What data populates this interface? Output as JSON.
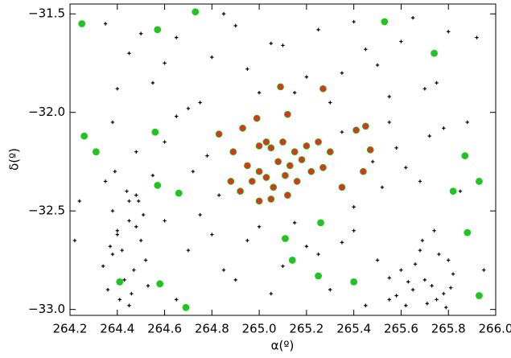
{
  "chart_data": {
    "type": "scatter",
    "xlabel": "α(º)",
    "ylabel": "δ(º)",
    "xlim": [
      264.2,
      266.0
    ],
    "ylim": [
      -33.03,
      -31.45
    ],
    "xticks": [
      264.2,
      264.4,
      264.6,
      264.8,
      {
        "value": 265.0,
        "label": "265.0"
      },
      265.2,
      265.4,
      265.6,
      265.8,
      {
        "value": 266.0,
        "label": "266.0"
      }
    ],
    "yticks": [
      {
        "value": -33.0,
        "label": "−33.0"
      },
      {
        "value": -32.5,
        "label": "−32.5"
      },
      {
        "value": -32.0,
        "label": "−32.0"
      },
      {
        "value": -31.5,
        "label": "−31.5"
      }
    ],
    "series": [
      {
        "color": "#000000",
        "marker": "plus",
        "x": [
          264.35,
          264.38,
          264.4,
          264.42,
          264.45,
          264.47,
          264.5,
          264.36,
          264.41,
          264.44,
          264.48,
          264.52,
          264.37,
          264.43,
          264.49,
          264.39,
          264.46,
          264.51,
          264.34,
          264.4,
          264.45,
          264.53,
          264.38,
          264.48,
          265.6,
          265.65,
          265.7,
          265.75,
          265.8,
          265.62,
          265.68,
          265.73,
          265.78,
          265.82,
          265.58,
          265.66,
          265.71,
          265.76,
          265.63,
          265.79,
          265.69,
          265.55,
          265.74,
          265.81,
          264.35,
          264.45,
          264.55,
          264.65,
          264.75,
          264.85,
          264.95,
          265.05,
          265.15,
          265.25,
          265.35,
          265.45,
          265.55,
          265.65,
          265.75,
          264.4,
          264.5,
          264.6,
          264.7,
          264.8,
          264.9,
          265.0,
          265.1,
          265.2,
          265.3,
          265.4,
          265.5,
          265.6,
          265.7,
          265.8,
          264.38,
          264.48,
          264.6,
          264.72,
          264.83,
          265.35,
          265.48,
          265.58,
          265.68,
          265.78,
          264.45,
          264.65,
          264.78,
          265.4,
          265.52,
          265.62,
          265.72,
          264.55,
          265.55,
          265.85,
          264.6,
          264.7,
          264.8,
          264.9,
          265.0,
          265.1,
          265.2,
          265.3,
          265.4,
          265.5,
          264.65,
          264.75,
          264.85,
          264.95,
          265.05,
          265.15,
          265.25,
          265.35,
          265.45,
          265.55,
          264.24,
          264.22,
          265.92,
          265.95,
          265.88
        ],
        "y": [
          -32.35,
          -32.5,
          -32.62,
          -32.7,
          -32.55,
          -32.8,
          -32.65,
          -32.9,
          -32.95,
          -32.4,
          -32.58,
          -32.75,
          -32.68,
          -32.85,
          -32.45,
          -32.3,
          -32.92,
          -32.52,
          -32.78,
          -32.6,
          -32.98,
          -32.88,
          -32.72,
          -32.42,
          -32.8,
          -32.9,
          -32.85,
          -32.95,
          -32.75,
          -32.98,
          -32.7,
          -32.88,
          -32.92,
          -32.82,
          -32.93,
          -32.77,
          -32.97,
          -32.72,
          -32.86,
          -32.99,
          -32.65,
          -32.95,
          -32.6,
          -32.89,
          -31.55,
          -31.7,
          -31.85,
          -31.62,
          -31.95,
          -31.5,
          -31.78,
          -31.65,
          -31.9,
          -31.58,
          -31.8,
          -31.68,
          -31.92,
          -31.52,
          -31.85,
          -31.88,
          -31.6,
          -31.75,
          -31.98,
          -31.72,
          -31.56,
          -31.9,
          -31.66,
          -31.82,
          -31.95,
          -31.54,
          -31.76,
          -31.64,
          -31.88,
          -31.59,
          -32.05,
          -32.2,
          -32.15,
          -32.3,
          -32.42,
          -32.1,
          -32.25,
          -32.18,
          -32.35,
          -32.08,
          -32.45,
          -32.02,
          -32.22,
          -32.48,
          -32.38,
          -32.28,
          -32.12,
          -32.32,
          -32.05,
          -32.4,
          -32.55,
          -32.7,
          -32.62,
          -32.85,
          -32.58,
          -32.78,
          -32.68,
          -32.9,
          -32.6,
          -32.75,
          -32.95,
          -32.52,
          -32.8,
          -32.65,
          -32.92,
          -32.56,
          -32.72,
          -32.66,
          -32.98,
          -32.84,
          -32.45,
          -32.65,
          -31.62,
          -32.8,
          -32.05
        ]
      },
      {
        "color": "#22c422",
        "marker": "circle",
        "x": [
          264.25,
          264.57,
          264.73,
          265.53,
          265.74,
          264.26,
          264.31,
          264.56,
          264.57,
          264.66,
          265.26,
          265.11,
          265.14,
          265.25,
          265.4,
          264.41,
          264.58,
          264.69,
          265.87,
          265.93,
          265.82,
          265.88,
          265.93
        ],
        "y": [
          -31.55,
          -31.58,
          -31.49,
          -31.54,
          -31.7,
          -32.12,
          -32.2,
          -32.1,
          -32.37,
          -32.41,
          -32.56,
          -32.64,
          -32.75,
          -32.83,
          -32.86,
          -32.86,
          -32.87,
          -32.99,
          -32.22,
          -32.35,
          -32.4,
          -32.61,
          -32.93
        ]
      },
      {
        "color": "#d43a1a",
        "marker": "circle",
        "x": [
          265.09,
          265.27,
          265.12,
          264.83,
          264.99,
          264.93,
          265.41,
          265.45,
          265.47,
          264.89,
          265.0,
          265.03,
          265.05,
          265.1,
          265.15,
          265.2,
          265.25,
          265.08,
          265.13,
          265.18,
          265.22,
          265.27,
          265.0,
          264.95,
          264.97,
          265.03,
          265.06,
          265.11,
          265.16,
          265.0,
          265.05,
          264.92,
          264.88,
          265.35,
          265.44,
          265.3,
          265.12
        ],
        "y": [
          -31.87,
          -31.88,
          -32.01,
          -32.11,
          -32.03,
          -32.08,
          -32.09,
          -32.07,
          -32.19,
          -32.2,
          -32.17,
          -32.15,
          -32.18,
          -32.15,
          -32.2,
          -32.17,
          -32.15,
          -32.25,
          -32.27,
          -32.24,
          -32.3,
          -32.28,
          -32.3,
          -32.27,
          -32.35,
          -32.33,
          -32.38,
          -32.32,
          -32.35,
          -32.45,
          -32.44,
          -32.4,
          -32.35,
          -32.38,
          -32.3,
          -32.2,
          -32.42
        ]
      }
    ]
  }
}
